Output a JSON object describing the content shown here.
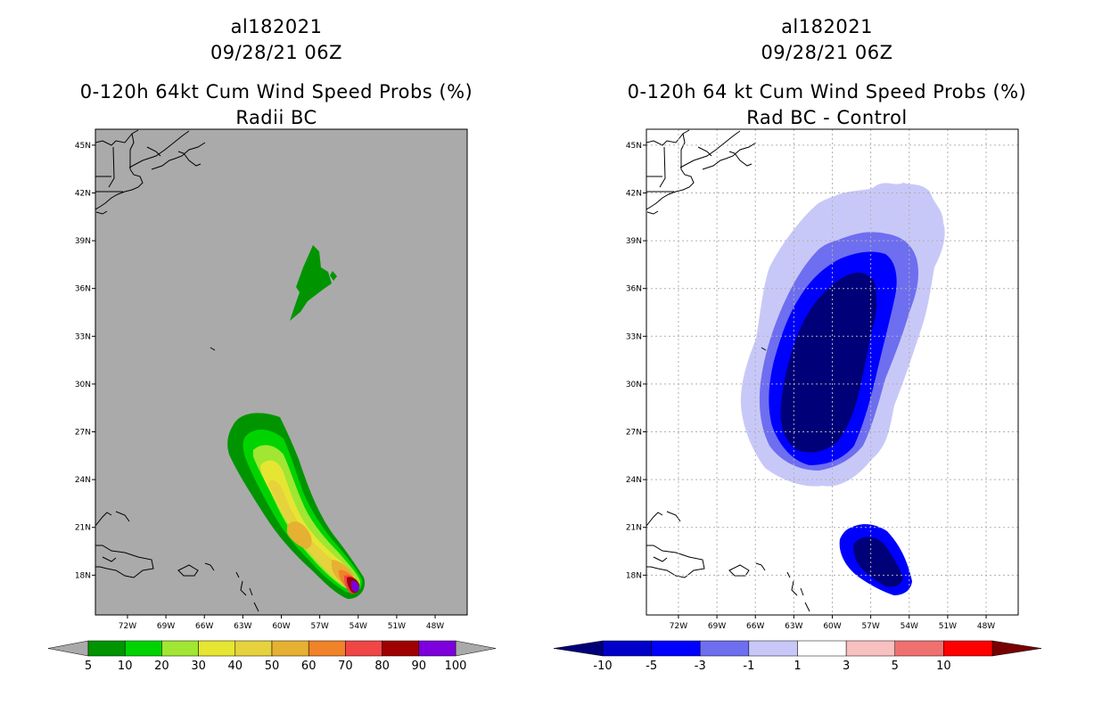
{
  "chart_data": [
    {
      "type": "contour-map",
      "storm_id": "al182021",
      "datetime": "09/28/21 06Z",
      "title": "0-120h 64kt Cum Wind Speed Probs (%)",
      "subtitle": "Radii BC",
      "lon_ticks": [
        "72W",
        "69W",
        "66W",
        "63W",
        "60W",
        "57W",
        "54W",
        "51W",
        "48W"
      ],
      "lat_ticks": [
        "45N",
        "42N",
        "39N",
        "36N",
        "33N",
        "30N",
        "27N",
        "24N",
        "21N",
        "18N"
      ],
      "lon_range": [
        -74.5,
        -45.5
      ],
      "lat_range": [
        15.5,
        46
      ],
      "grid": false,
      "colorbar": {
        "labels": [
          "5",
          "10",
          "20",
          "30",
          "40",
          "50",
          "60",
          "70",
          "80",
          "90",
          "100"
        ],
        "colors": [
          "#009500",
          "#00d400",
          "#a0e632",
          "#e6e632",
          "#e6d23c",
          "#e6b032",
          "#f08228",
          "#f04646",
          "#a00000",
          "#7d00dc"
        ],
        "under_color": "#aaaaaa",
        "over_color": "#aaaaaa"
      }
    },
    {
      "type": "contour-map",
      "storm_id": "al182021",
      "datetime": "09/28/21 06Z",
      "title": "0-120h 64 kt Cum Wind Speed Probs (%)",
      "subtitle": "Rad BC - Control",
      "lon_ticks": [
        "72W",
        "69W",
        "66W",
        "63W",
        "60W",
        "57W",
        "54W",
        "51W",
        "48W"
      ],
      "lat_ticks": [
        "45N",
        "42N",
        "39N",
        "36N",
        "33N",
        "30N",
        "27N",
        "24N",
        "21N",
        "18N"
      ],
      "lon_range": [
        -74.5,
        -45.5
      ],
      "lat_range": [
        15.5,
        46
      ],
      "grid": true,
      "colorbar": {
        "labels": [
          "-10",
          "-5",
          "-3",
          "-1",
          "1",
          "3",
          "5",
          "10"
        ],
        "colors": [
          "#0000c8",
          "#0000ff",
          "#6e6ef0",
          "#c8c8f8",
          "#ffffff",
          "#f8c0c0",
          "#f07070",
          "#ff0000"
        ],
        "under_color": "#000078",
        "over_color": "#780000"
      }
    }
  ]
}
